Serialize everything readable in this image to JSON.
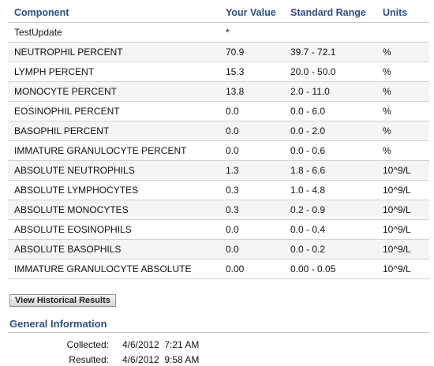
{
  "table": {
    "headers": [
      "Component",
      "Your Value",
      "Standard Range",
      "Units"
    ],
    "rows": [
      [
        "TestUpdate",
        "*",
        "",
        ""
      ],
      [
        "NEUTROPHIL PERCENT",
        "70.9",
        "39.7 - 72.1",
        "%"
      ],
      [
        "LYMPH PERCENT",
        "15.3",
        "20.0 - 50.0",
        "%"
      ],
      [
        "MONOCYTE PERCENT",
        "13.8",
        "2.0 - 11.0",
        "%"
      ],
      [
        "EOSINOPHIL PERCENT",
        "0.0",
        "0.0 - 6.0",
        "%"
      ],
      [
        "BASOPHIL PERCENT",
        "0.0",
        "0.0 - 2.0",
        "%"
      ],
      [
        "IMMATURE GRANULOCYTE PERCENT",
        "0.0",
        "0.0 - 0.6",
        "%"
      ],
      [
        "ABSOLUTE NEUTROPHILS",
        "1.3",
        "1.8 - 6.6",
        "10^9/L"
      ],
      [
        "ABSOLUTE LYMPHOCYTES",
        "0.3",
        "1.0 - 4.8",
        "10^9/L"
      ],
      [
        "ABSOLUTE MONOCYTES",
        "0.3",
        "0.2 - 0.9",
        "10^9/L"
      ],
      [
        "ABSOLUTE EOSINOPHILS",
        "0.0",
        "0.0 - 0.4",
        "10^9/L"
      ],
      [
        "ABSOLUTE BASOPHILS",
        "0.0",
        "0.0 - 0.2",
        "10^9/L"
      ],
      [
        "IMMATURE GRANULOCYTE ABSOLUTE",
        "0.00",
        "0.00 - 0.05",
        "10^9/L"
      ]
    ]
  },
  "actions": {
    "history_label": "View Historical Results"
  },
  "general": {
    "title": "General Information",
    "collected_label": "Collected:",
    "collected_value": "4/6/2012  7:21 AM",
    "resulted_label": "Resulted:",
    "resulted_value": "4/6/2012  9:58 AM"
  },
  "colors": {
    "header_text": "#2c4f88",
    "row_alt": "#f5f5f5"
  }
}
